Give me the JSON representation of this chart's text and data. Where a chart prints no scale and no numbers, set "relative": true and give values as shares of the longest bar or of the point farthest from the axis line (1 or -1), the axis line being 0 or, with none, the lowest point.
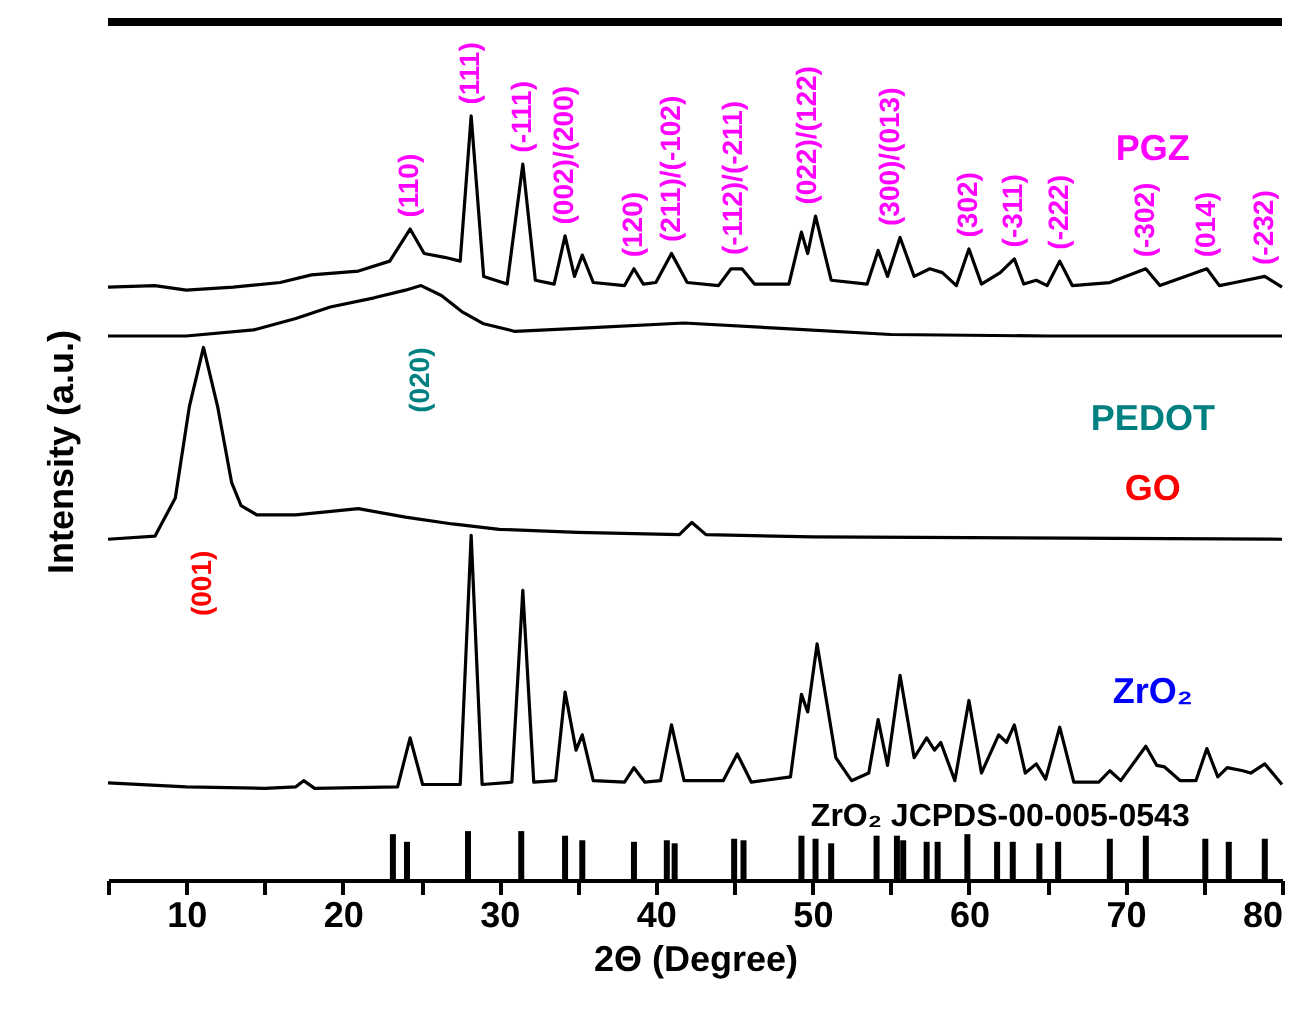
{
  "chart_data": {
    "type": "line",
    "xlabel": "2Θ (Degree)",
    "ylabel": "Intensity (a.u.)",
    "relative": true,
    "tick_labels": "x",
    "grid": false,
    "xlim": [
      5,
      80
    ],
    "xticks": [
      {
        "value": 5,
        "label": null
      },
      10,
      {
        "value": 15,
        "label": null
      },
      20,
      {
        "value": 25,
        "label": null
      },
      30,
      {
        "value": 35,
        "label": null
      },
      40,
      {
        "value": 45,
        "label": null
      },
      50,
      {
        "value": 55,
        "label": null
      },
      60,
      {
        "value": 65,
        "label": null
      },
      70,
      {
        "value": 75,
        "label": null
      },
      80
    ],
    "series": [
      {
        "name": "PGZ",
        "color": "#000000",
        "x": [
          5,
          8,
          10,
          13,
          16,
          18,
          21,
          23,
          24.3,
          25.2,
          26.5,
          27.5,
          28.2,
          29,
          30.5,
          31.5,
          32.3,
          33.5,
          34.2,
          34.8,
          35.3,
          36,
          38,
          38.6,
          39.2,
          40,
          41,
          42,
          44,
          44.8,
          45.5,
          46.3,
          48.5,
          49.3,
          49.7,
          50.2,
          51.2,
          53.5,
          54.2,
          54.8,
          55.6,
          56.5,
          57.5,
          58.3,
          59.2,
          60,
          60.8,
          62,
          62.9,
          63.5,
          64.3,
          65,
          65.8,
          66.6,
          69,
          71.3,
          72.2,
          75.2,
          76,
          77,
          78.9,
          80
        ],
        "values": [
          0.776,
          0.778,
          0.772,
          0.776,
          0.782,
          0.792,
          0.797,
          0.81,
          0.852,
          0.82,
          0.815,
          0.81,
          1.0,
          0.79,
          0.78,
          0.937,
          0.785,
          0.78,
          0.843,
          0.79,
          0.818,
          0.782,
          0.778,
          0.8,
          0.78,
          0.782,
          0.82,
          0.782,
          0.778,
          0.8,
          0.8,
          0.78,
          0.78,
          0.848,
          0.82,
          0.869,
          0.785,
          0.78,
          0.824,
          0.79,
          0.841,
          0.79,
          0.8,
          0.795,
          0.778,
          0.826,
          0.78,
          0.795,
          0.813,
          0.78,
          0.785,
          0.778,
          0.81,
          0.778,
          0.782,
          0.8,
          0.778,
          0.8,
          0.778,
          0.782,
          0.79,
          0.776
        ]
      },
      {
        "name": "PEDOT",
        "color": "#000000",
        "x": [
          5,
          10,
          14.3,
          17,
          19.2,
          22,
          24,
          25,
          26.3,
          27.6,
          29,
          31,
          35,
          41.8,
          48,
          55,
          65,
          80
        ],
        "values": [
          0.712,
          0.712,
          0.72,
          0.735,
          0.75,
          0.762,
          0.772,
          0.778,
          0.765,
          0.744,
          0.728,
          0.718,
          0.722,
          0.729,
          0.722,
          0.714,
          0.712,
          0.712
        ]
      },
      {
        "name": "GO",
        "color": "#000000",
        "x": [
          5,
          8,
          9.3,
          10.2,
          11.1,
          12,
          12.9,
          13.5,
          14.5,
          17,
          21,
          24,
          27,
          30,
          35,
          41.5,
          42.3,
          43.2,
          50,
          60,
          80
        ],
        "values": [
          0.446,
          0.45,
          0.5,
          0.62,
          0.697,
          0.62,
          0.52,
          0.49,
          0.478,
          0.478,
          0.486,
          0.475,
          0.466,
          0.459,
          0.455,
          0.452,
          0.468,
          0.452,
          0.449,
          0.448,
          0.446
        ]
      },
      {
        "name": "ZrO₂",
        "color": "#000000",
        "x": [
          5,
          10,
          15,
          17,
          17.5,
          18.2,
          23.5,
          24.3,
          25.1,
          27.5,
          28.2,
          28.9,
          30.8,
          31.5,
          32.2,
          33.6,
          34.2,
          34.9,
          35.3,
          36,
          38,
          38.6,
          39.3,
          40.3,
          41,
          41.8,
          44.3,
          45.2,
          46.1,
          48.6,
          49.3,
          49.7,
          50.3,
          51.5,
          52.5,
          53.6,
          54.2,
          54.8,
          55.6,
          56.5,
          57.3,
          57.8,
          58.2,
          59.1,
          60,
          60.8,
          61.9,
          62.4,
          62.9,
          63.6,
          64.3,
          64.9,
          65.8,
          66.7,
          68.3,
          69,
          69.7,
          71.3,
          72,
          72.5,
          73.5,
          74.5,
          75.2,
          75.9,
          76.5,
          77.5,
          78,
          78.9,
          80
        ],
        "values": [
          0.127,
          0.122,
          0.12,
          0.122,
          0.13,
          0.12,
          0.122,
          0.186,
          0.125,
          0.125,
          0.451,
          0.125,
          0.128,
          0.379,
          0.128,
          0.13,
          0.246,
          0.17,
          0.19,
          0.13,
          0.128,
          0.147,
          0.128,
          0.13,
          0.203,
          0.13,
          0.13,
          0.165,
          0.128,
          0.135,
          0.243,
          0.22,
          0.309,
          0.16,
          0.13,
          0.14,
          0.21,
          0.15,
          0.268,
          0.16,
          0.186,
          0.17,
          0.18,
          0.13,
          0.235,
          0.14,
          0.19,
          0.18,
          0.203,
          0.14,
          0.152,
          0.132,
          0.2,
          0.128,
          0.128,
          0.143,
          0.13,
          0.175,
          0.15,
          0.148,
          0.13,
          0.13,
          0.172,
          0.135,
          0.147,
          0.143,
          0.14,
          0.152,
          0.125
        ]
      },
      {
        "name": "ZrO₂ JCPDS-00-005-0543",
        "type": "bar",
        "color": "#000000",
        "x": [
          23.2,
          24.1,
          28,
          31.4,
          34.2,
          35.3,
          38.6,
          40.7,
          41.2,
          45,
          45.6,
          49.3,
          50.2,
          51.2,
          54.1,
          55.4,
          55.8,
          57.3,
          58,
          59.9,
          61.8,
          62.8,
          64.5,
          65.7,
          69,
          71.3,
          75.1,
          76.6,
          78.9
        ],
        "values": [
          0.06,
          0.05,
          0.064,
          0.064,
          0.058,
          0.052,
          0.05,
          0.052,
          0.048,
          0.054,
          0.052,
          0.058,
          0.054,
          0.048,
          0.058,
          0.058,
          0.052,
          0.05,
          0.05,
          0.06,
          0.05,
          0.05,
          0.048,
          0.05,
          0.054,
          0.058,
          0.054,
          0.05,
          0.054
        ]
      }
    ],
    "annotations": [
      {
        "text": "(110)",
        "x": 24.3,
        "y": 0.852
      },
      {
        "text": "(111)",
        "x": 28.2,
        "y": 1.0
      },
      {
        "text": "(-111)",
        "x": 31.5,
        "y": 0.937
      },
      {
        "text": "(002)/(200)",
        "x": 34.2,
        "y": 0.843
      },
      {
        "text": "(120)",
        "x": 38.6,
        "y": 0.8
      },
      {
        "text": "(211)/(-102)",
        "x": 41,
        "y": 0.82
      },
      {
        "text": "(-112)/(-211)",
        "x": 45,
        "y": 0.803
      },
      {
        "text": "(022)/(122)",
        "x": 49.7,
        "y": 0.869
      },
      {
        "text": "(300)/(013)",
        "x": 55,
        "y": 0.841
      },
      {
        "text": "(302)",
        "x": 60,
        "y": 0.826
      },
      {
        "text": "(-311)",
        "x": 62.9,
        "y": 0.813
      },
      {
        "text": "(-222)",
        "x": 65.8,
        "y": 0.81
      },
      {
        "text": "(-302)",
        "x": 71.3,
        "y": 0.8
      },
      {
        "text": "(014)",
        "x": 75.2,
        "y": 0.8
      },
      {
        "text": "(-232)",
        "x": 78.9,
        "y": 0.79
      },
      "(020)",
      "(001)"
    ]
  }
}
